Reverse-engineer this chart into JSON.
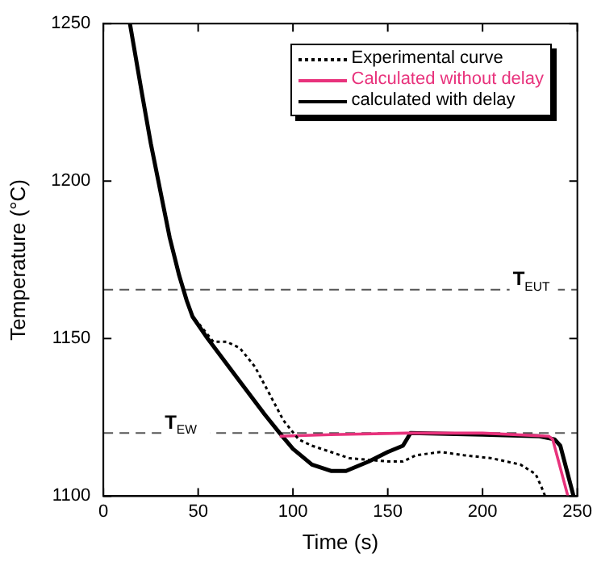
{
  "chart_data": {
    "type": "line",
    "xlabel": "Time (s)",
    "ylabel": "Temperature (°C)",
    "xlim": [
      0,
      250
    ],
    "ylim": [
      1100,
      1250
    ],
    "xticks": [
      0,
      50,
      100,
      150,
      200,
      250
    ],
    "yticks": [
      1100,
      1150,
      1200,
      1250
    ],
    "grid": false,
    "legend": "top right",
    "marker": "none",
    "series": [
      {
        "name": "Experimental curve",
        "color": "#000000",
        "line_style": "dotted",
        "x": [
          14,
          20,
          25,
          30,
          35,
          40,
          44,
          47,
          50,
          58,
          65,
          72,
          80,
          88,
          95,
          103,
          110,
          130,
          150,
          158,
          165,
          178,
          190,
          205,
          220,
          228,
          231,
          233
        ],
        "values": [
          1250,
          1229,
          1212,
          1197,
          1182,
          1170,
          1162,
          1157,
          1155,
          1149,
          1149,
          1147,
          1141,
          1132,
          1124,
          1118,
          1116,
          1112,
          1111,
          1111,
          1113,
          1114,
          1113,
          1112,
          1110,
          1107,
          1103,
          1100
        ]
      },
      {
        "name": "Calculated without delay",
        "color": "#e8327c",
        "line_style": "solid",
        "x": [
          93,
          120,
          160,
          200,
          235,
          237,
          245
        ],
        "values": [
          1119,
          1119.5,
          1120,
          1120,
          1119,
          1118,
          1100
        ]
      },
      {
        "name": "calculated with delay",
        "color": "#000000",
        "line_style": "solid",
        "x": [
          14,
          20,
          25,
          30,
          35,
          40,
          44,
          47,
          55,
          70,
          85,
          93,
          100,
          110,
          120,
          128,
          140,
          150,
          158,
          160,
          162,
          200,
          230,
          238,
          241,
          248
        ],
        "values": [
          1250,
          1229,
          1212,
          1197,
          1182,
          1170,
          1162,
          1157,
          1150,
          1138,
          1126,
          1120,
          1115,
          1110,
          1108,
          1108,
          1111,
          1114,
          1116,
          1118,
          1120,
          1119.5,
          1119,
          1118,
          1116,
          1100
        ]
      }
    ],
    "ref_lines": [
      {
        "axis": "y",
        "value": 1165.5,
        "label": "T$_{EUT}$",
        "color": "#555555",
        "line_style": "dashed"
      },
      {
        "axis": "y",
        "value": 1120,
        "label": "T$_{EW}$",
        "color": "#555555",
        "line_style": "dashed"
      }
    ]
  }
}
